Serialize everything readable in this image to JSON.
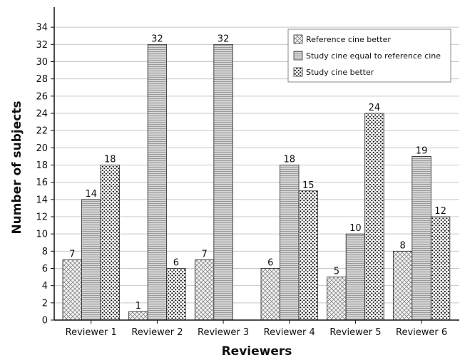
{
  "chart_data": {
    "type": "bar",
    "categories": [
      "Reviewer 1",
      "Reviewer 2",
      "Reviewer 3",
      "Reviewer 4",
      "Reviewer 5",
      "Reviewer 6"
    ],
    "series": [
      {
        "name": "Reference cine better",
        "values": [
          7,
          1,
          7,
          6,
          5,
          8
        ],
        "pattern": "crosshatch",
        "color": "#e8e8e8"
      },
      {
        "name": "Study cine equal to reference cine",
        "values": [
          14,
          32,
          32,
          18,
          10,
          19
        ],
        "pattern": "horizontal-lines",
        "color": "#cfcfcf"
      },
      {
        "name": "Study cine better",
        "values": [
          18,
          6,
          null,
          15,
          24,
          12
        ],
        "pattern": "dots",
        "color": "#ffffff"
      }
    ],
    "data_labels": [
      [
        "7",
        "1",
        "7",
        "6",
        "5",
        "8"
      ],
      [
        "14",
        "32",
        "32",
        "18",
        "10",
        "19"
      ],
      [
        "18",
        "6",
        "",
        "15",
        "24",
        "12"
      ]
    ],
    "title": "",
    "xlabel": "Reviewers",
    "ylabel": "Number of subjects",
    "ylim": [
      0,
      36
    ],
    "yticks": [
      0,
      2,
      4,
      6,
      8,
      10,
      12,
      14,
      16,
      18,
      20,
      22,
      24,
      26,
      28,
      30,
      32,
      34
    ],
    "grid": true,
    "legend_position": "top-right"
  }
}
